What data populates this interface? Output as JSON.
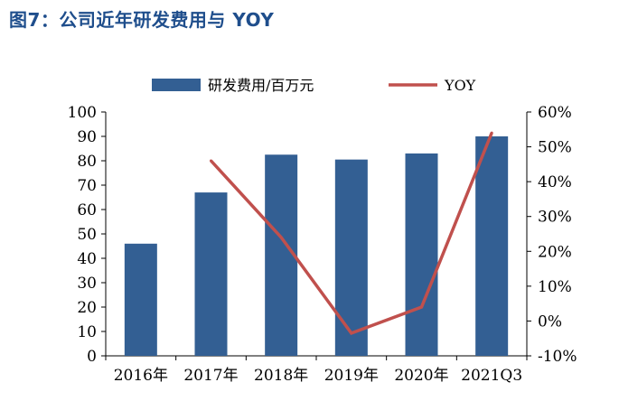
{
  "figure_title": "图7：公司近年研发费用与 YOY",
  "chart_data": {
    "type": "bar",
    "categories": [
      "2016年",
      "2017年",
      "2018年",
      "2019年",
      "2020年",
      "2021Q3"
    ],
    "series": [
      {
        "name": "研发费用/百万元",
        "type": "bar",
        "axis": "left",
        "color": "#335f93",
        "values": [
          46,
          67,
          82.5,
          80.5,
          83,
          90
        ]
      },
      {
        "name": "YOY",
        "type": "line",
        "axis": "right",
        "color": "#c0504d",
        "values": [
          null,
          46,
          24,
          -3.5,
          4,
          54
        ]
      }
    ],
    "ylim_left": [
      0,
      100
    ],
    "yticks_left": [
      "0",
      "10",
      "20",
      "30",
      "40",
      "50",
      "60",
      "70",
      "80",
      "90",
      "100"
    ],
    "ylim_right": [
      -10,
      60
    ],
    "yticks_right": [
      "-10%",
      "0%",
      "10%",
      "20%",
      "30%",
      "40%",
      "50%",
      "60%"
    ],
    "grid": false,
    "legend_position": "top"
  }
}
